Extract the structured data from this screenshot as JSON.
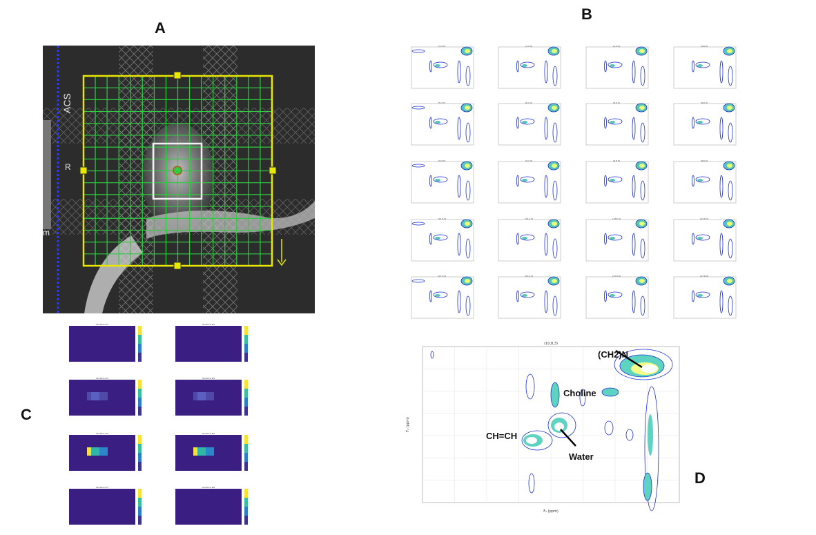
{
  "panels": {
    "a": {
      "label": "A",
      "overlay_text": {
        "acs": "ACS",
        "r": "R",
        "m": "m"
      }
    },
    "b": {
      "label": "B",
      "tile_titles": [
        "(1,3,3)",
        "(1,1,3)",
        "(1,5,3)",
        "(1,6,3)",
        "(5,3,3)",
        "(6,1,3)",
        "(5,5,3)",
        "(5,6,3)",
        "(9,3,3)",
        "(9,1,3)",
        "(9,5,3)",
        "(9,6,3)",
        "(13,3,3)",
        "(13,1,3)",
        "(13,5,3)",
        "(13,6,3)",
        "(17,3,3)",
        "(17,1,3)",
        "(17,5,3)",
        "(17,6,3)"
      ]
    },
    "c": {
      "label": "C",
      "slice_titles": [
        "Sel Slice #1",
        "Sel Slice #2",
        "Sel Slice #3",
        "Sel Slice #4",
        "Sel Slice #5",
        "Sel Slice #6",
        "Sel Slice #7",
        "Sel Slice #8"
      ]
    },
    "d": {
      "label": "D",
      "title": "(10,8,3)",
      "x_axis_label": "F₂ (ppm)",
      "y_axis_label": "F₁ (ppm)",
      "annotations": {
        "ch2n": "(CH2)N",
        "choline": "Choline",
        "chch": "CH=CH",
        "water": "Water"
      }
    }
  },
  "colors": {
    "grid_green": "#2ecc40",
    "roi_yellow": "#e8e800",
    "contour_blue": "#1a2fd0",
    "heat_bg": "#3b1e82"
  }
}
